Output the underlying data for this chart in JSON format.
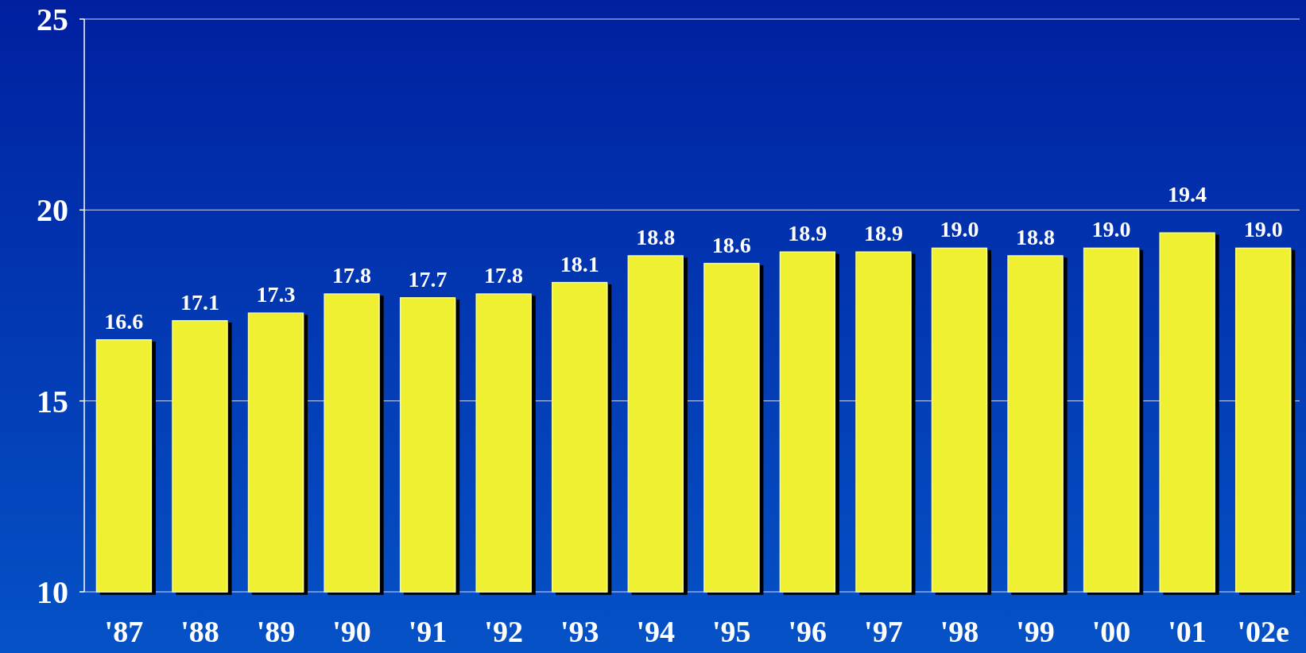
{
  "chart_data": {
    "type": "bar",
    "categories": [
      "'87",
      "'88",
      "'89",
      "'90",
      "'91",
      "'92",
      "'93",
      "'94",
      "'95",
      "'96",
      "'97",
      "'98",
      "'99",
      "'00",
      "'01",
      "'02e"
    ],
    "values": [
      16.6,
      17.1,
      17.3,
      17.8,
      17.7,
      17.8,
      18.1,
      18.8,
      18.6,
      18.9,
      18.9,
      19.0,
      18.8,
      19.0,
      19.4,
      19.0
    ],
    "value_labels": [
      "16.6",
      "17.1",
      "17.3",
      "17.8",
      "17.7",
      "17.8",
      "18.1",
      "18.8",
      "18.6",
      "18.9",
      "18.9",
      "19.0",
      "18.8",
      "19.0",
      "19.4",
      "19.0"
    ],
    "color": "#f0f032",
    "ylim": [
      10,
      25
    ],
    "yticks": [
      10,
      15,
      20,
      25
    ],
    "grid": "y"
  }
}
